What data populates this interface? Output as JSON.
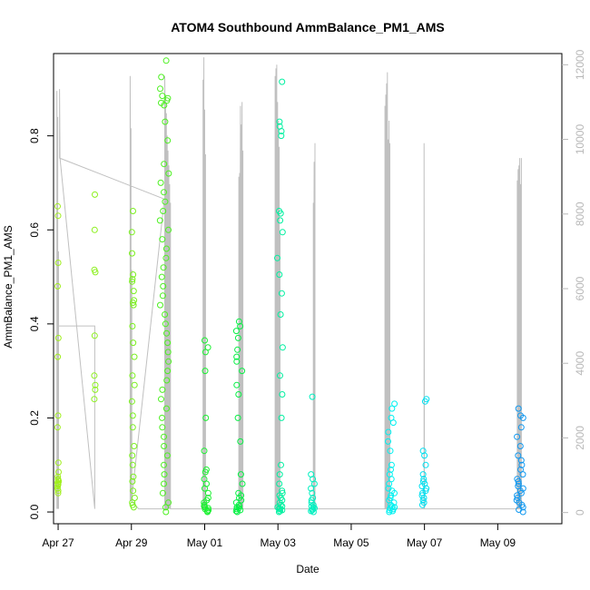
{
  "chart_data": {
    "type": "scatter",
    "title": "ATOM4 Southbound AmmBalance_PM1_AMS",
    "xlabel": "Date",
    "ylabel": "AmmBalance_PM1_AMS",
    "xlim": [
      "2019-04-26T21:00",
      "2019-05-10T18:00"
    ],
    "ylim": [
      -0.025,
      0.975
    ],
    "y2lim": [
      -300,
      12300
    ],
    "x_ticks": [
      {
        "date": "2019-04-27",
        "label": "Apr 27"
      },
      {
        "date": "2019-04-29",
        "label": "Apr 29"
      },
      {
        "date": "2019-05-01",
        "label": "May 01"
      },
      {
        "date": "2019-05-03",
        "label": "May 03"
      },
      {
        "date": "2019-05-05",
        "label": "May 05"
      },
      {
        "date": "2019-05-07",
        "label": "May 07"
      },
      {
        "date": "2019-05-09",
        "label": "May 09"
      }
    ],
    "y_ticks": [
      {
        "value": 0.0,
        "label": "0.0"
      },
      {
        "value": 0.2,
        "label": "0.2"
      },
      {
        "value": 0.4,
        "label": "0.4"
      },
      {
        "value": 0.6,
        "label": "0.6"
      },
      {
        "value": 0.8,
        "label": "0.8"
      }
    ],
    "y2_ticks": [
      {
        "value": 0,
        "label": "0"
      },
      {
        "value": 2000,
        "label": "2000"
      },
      {
        "value": 4000,
        "label": "4000"
      },
      {
        "value": 6000,
        "label": "6000"
      },
      {
        "value": 8000,
        "label": "8000"
      },
      {
        "value": 10000,
        "label": "10000"
      },
      {
        "value": 12000,
        "label": "12000"
      }
    ],
    "grid": false,
    "legend": "none",
    "point_colors": [
      "#b4f01e",
      "#00ff2a",
      "#00ffff",
      "#0a82ff"
    ],
    "line_color": "#c0c0c0",
    "scatter_clusters": [
      {
        "x": 27.0,
        "spread": 0.02,
        "color": "#a0ef1d",
        "ys": [
          0.04,
          0.045,
          0.05,
          0.055,
          0.058,
          0.06,
          0.062,
          0.065,
          0.068,
          0.07,
          0.075,
          0.085,
          0.105,
          0.18,
          0.205,
          0.33,
          0.37,
          0.48,
          0.53,
          0.63,
          0.65
        ]
      },
      {
        "x": 28.0,
        "spread": 0.015,
        "color": "#8cf01e",
        "ys": [
          0.24,
          0.26,
          0.27,
          0.29,
          0.375,
          0.51,
          0.515,
          0.6,
          0.675
        ]
      },
      {
        "x": 29.05,
        "spread": 0.04,
        "color": "#7af01e",
        "ys": [
          0.01,
          0.015,
          0.02,
          0.03,
          0.045,
          0.065,
          0.075,
          0.1,
          0.12,
          0.14,
          0.18,
          0.205,
          0.235,
          0.27,
          0.29,
          0.33,
          0.36,
          0.395,
          0.44,
          0.445,
          0.45,
          0.47,
          0.49,
          0.495,
          0.505,
          0.55,
          0.595,
          0.64
        ]
      },
      {
        "x": 29.9,
        "spread": 0.12,
        "color": "#4cf020",
        "ys": [
          0.0,
          0.01,
          0.02,
          0.04,
          0.06,
          0.08,
          0.1,
          0.12,
          0.14,
          0.16,
          0.18,
          0.2,
          0.22,
          0.24,
          0.26,
          0.28,
          0.3,
          0.32,
          0.34,
          0.36,
          0.38,
          0.4,
          0.42,
          0.44,
          0.46,
          0.48,
          0.5,
          0.52,
          0.54,
          0.56,
          0.58,
          0.6,
          0.62,
          0.64,
          0.66,
          0.68,
          0.7,
          0.72,
          0.74,
          0.79,
          0.83,
          0.865,
          0.87,
          0.875,
          0.88,
          0.885,
          0.9,
          0.925,
          0.96
        ]
      },
      {
        "x": 31.05,
        "spread": 0.07,
        "color": "#1af030",
        "ys": [
          0.0,
          0.002,
          0.004,
          0.006,
          0.008,
          0.01,
          0.012,
          0.015,
          0.02,
          0.025,
          0.03,
          0.04,
          0.05,
          0.06,
          0.07,
          0.085,
          0.09,
          0.13,
          0.2,
          0.3,
          0.34,
          0.35,
          0.365
        ]
      },
      {
        "x": 31.95,
        "spread": 0.09,
        "color": "#08f045",
        "ys": [
          0.0,
          0.002,
          0.004,
          0.006,
          0.008,
          0.01,
          0.012,
          0.015,
          0.02,
          0.025,
          0.03,
          0.035,
          0.04,
          0.06,
          0.08,
          0.15,
          0.2,
          0.25,
          0.27,
          0.3,
          0.32,
          0.33,
          0.345,
          0.37,
          0.385,
          0.395,
          0.405
        ]
      },
      {
        "x": 33.05,
        "spread": 0.08,
        "color": "#00f0a0",
        "ys": [
          0.0,
          0.002,
          0.004,
          0.006,
          0.008,
          0.01,
          0.012,
          0.015,
          0.02,
          0.025,
          0.03,
          0.035,
          0.04,
          0.045,
          0.06,
          0.08,
          0.1,
          0.2,
          0.25,
          0.29,
          0.35,
          0.42,
          0.465,
          0.505,
          0.54,
          0.595,
          0.62,
          0.635,
          0.64,
          0.8,
          0.81,
          0.82,
          0.83,
          0.915
        ]
      },
      {
        "x": 33.95,
        "spread": 0.05,
        "color": "#00f0c0",
        "ys": [
          0.0,
          0.002,
          0.004,
          0.006,
          0.008,
          0.01,
          0.012,
          0.015,
          0.02,
          0.025,
          0.03,
          0.04,
          0.05,
          0.06,
          0.07,
          0.08,
          0.245
        ]
      },
      {
        "x": 36.1,
        "spread": 0.1,
        "color": "#00f0f0",
        "ys": [
          0.0,
          0.002,
          0.004,
          0.006,
          0.008,
          0.01,
          0.012,
          0.015,
          0.02,
          0.025,
          0.03,
          0.035,
          0.04,
          0.045,
          0.05,
          0.06,
          0.07,
          0.08,
          0.09,
          0.1,
          0.13,
          0.15,
          0.17,
          0.19,
          0.2,
          0.22,
          0.23
        ]
      },
      {
        "x": 37.0,
        "spread": 0.07,
        "color": "#00e0f0",
        "ys": [
          0.015,
          0.02,
          0.025,
          0.03,
          0.035,
          0.04,
          0.045,
          0.05,
          0.055,
          0.06,
          0.065,
          0.07,
          0.08,
          0.1,
          0.12,
          0.13,
          0.235,
          0.24
        ]
      },
      {
        "x": 39.6,
        "spread": 0.1,
        "color": "#1098f0",
        "ys": [
          0.0,
          0.005,
          0.01,
          0.015,
          0.02,
          0.025,
          0.03,
          0.035,
          0.04,
          0.045,
          0.05,
          0.055,
          0.06,
          0.065,
          0.07,
          0.08,
          0.09,
          0.1,
          0.11,
          0.12,
          0.14,
          0.16,
          0.18,
          0.2,
          0.205,
          0.22
        ]
      }
    ],
    "line_series": [
      {
        "x": 27.0,
        "y2": 100,
        "spikes": [
          11300,
          10600,
          7000
        ]
      },
      {
        "x": 27.0,
        "y2": 5000,
        "spikes": []
      },
      {
        "x": 28.0,
        "y2": 5000,
        "spikes": []
      },
      {
        "x": 28.0,
        "y2": 100,
        "spikes": []
      },
      {
        "x": 27.05,
        "y2": 9500,
        "spikes": [
          11350
        ]
      },
      {
        "x": 29.9,
        "y2": 8400,
        "spikes": []
      },
      {
        "x": 29.0,
        "y2": 300,
        "spikes": [
          11700,
          10300,
          6500
        ]
      },
      {
        "x": 29.2,
        "y2": 100,
        "spikes": []
      },
      {
        "x": 30.0,
        "y2": 100,
        "spikes": [
          11700,
          11200,
          10700,
          10100,
          9700,
          9300,
          8800,
          8300
        ]
      },
      {
        "x": 31.0,
        "y2": 100,
        "spikes": [
          11600,
          12200,
          10800,
          9600
        ]
      },
      {
        "x": 32.0,
        "y2": 100,
        "spikes": [
          9000,
          9100,
          10900,
          10400,
          11000,
          9700
        ]
      },
      {
        "x": 33.0,
        "y2": 100,
        "spikes": [
          11700,
          11900,
          12000,
          11000,
          10500,
          9800,
          7500
        ]
      },
      {
        "x": 34.0,
        "y2": 100,
        "spikes": [
          8300,
          9400,
          9900
        ]
      },
      {
        "x": 36.0,
        "y2": 100,
        "spikes": [
          10900,
          11200,
          11500,
          11800,
          10000,
          10500,
          9900
        ]
      },
      {
        "x": 37.0,
        "y2": 100,
        "spikes": [
          9900
        ]
      },
      {
        "x": 39.6,
        "y2": 100,
        "spikes": [
          8900,
          9200,
          9300,
          9500,
          8800,
          9500
        ]
      }
    ]
  }
}
